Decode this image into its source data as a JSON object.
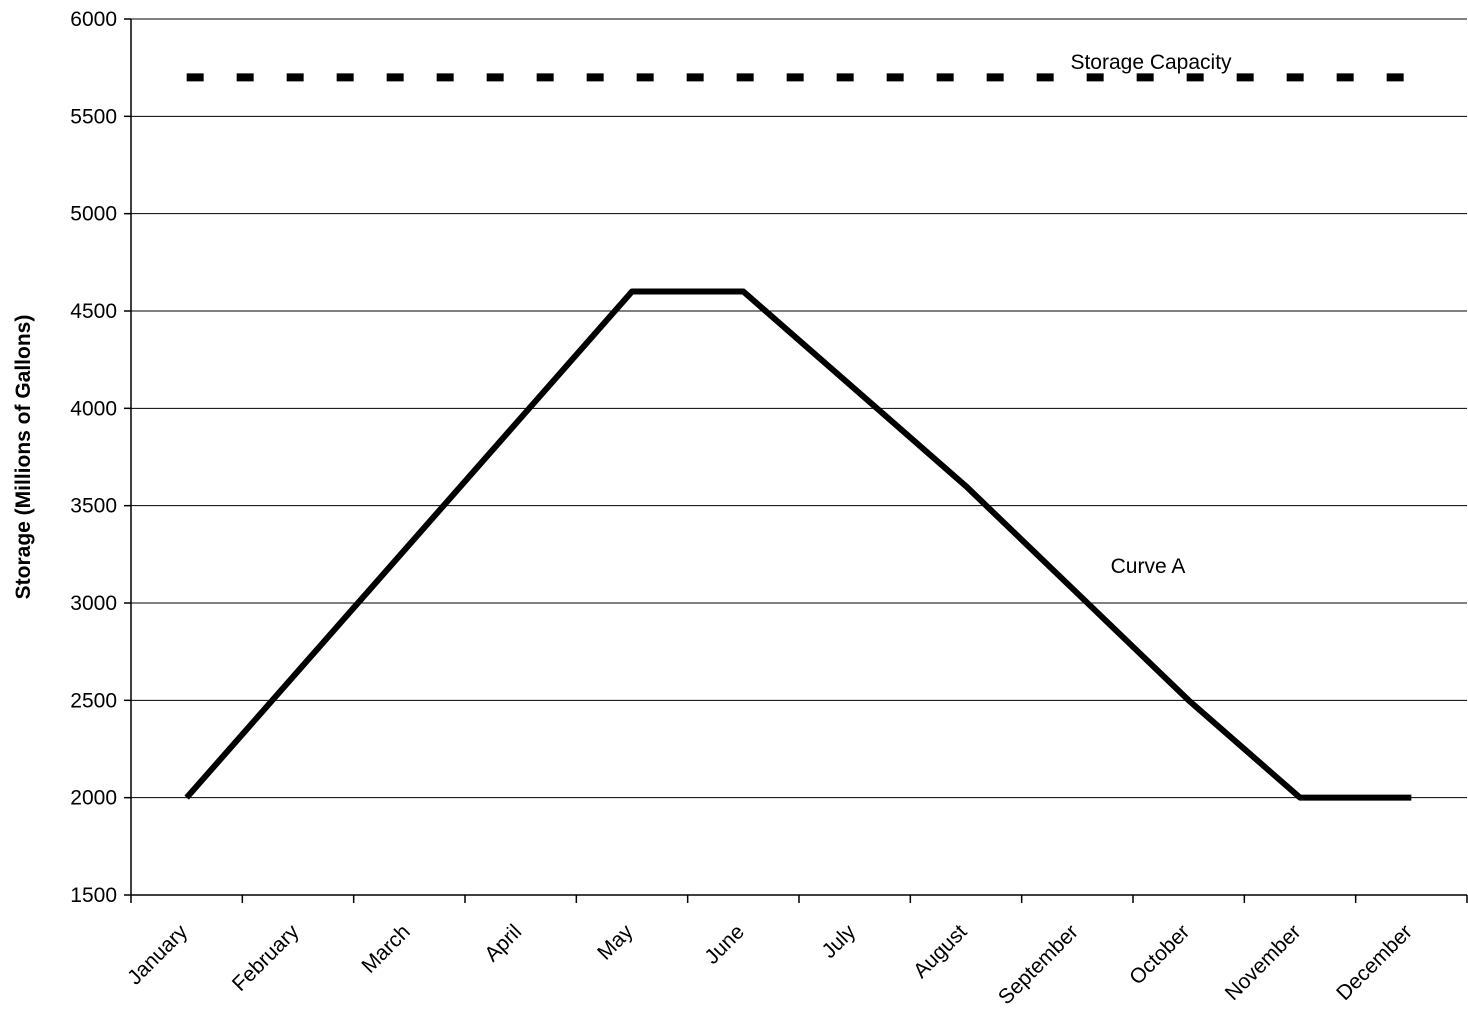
{
  "chart_data": {
    "type": "line",
    "y_label": "Storage (Millions of Gallons)",
    "categories": [
      "January",
      "February",
      "March",
      "April",
      "May",
      "June",
      "July",
      "August",
      "September",
      "October",
      "November",
      "December"
    ],
    "series": [
      {
        "name": "Storage Capacity",
        "color": "#000000",
        "dashed": true,
        "values": [
          5700,
          5700,
          5700,
          5700,
          5700,
          5700,
          5700,
          5700,
          5700,
          5700,
          5700,
          5700
        ]
      },
      {
        "name": "Curve A",
        "color": "#000000",
        "dashed": false,
        "values": [
          2000,
          2650,
          3300,
          3950,
          4600,
          4600,
          4100,
          3600,
          3050,
          2500,
          2000,
          2000
        ]
      }
    ],
    "ylim": [
      1500,
      6000
    ],
    "yticks": [
      1500,
      2000,
      2500,
      3000,
      3500,
      4000,
      4500,
      5000,
      5500,
      6000
    ],
    "grid": true
  }
}
